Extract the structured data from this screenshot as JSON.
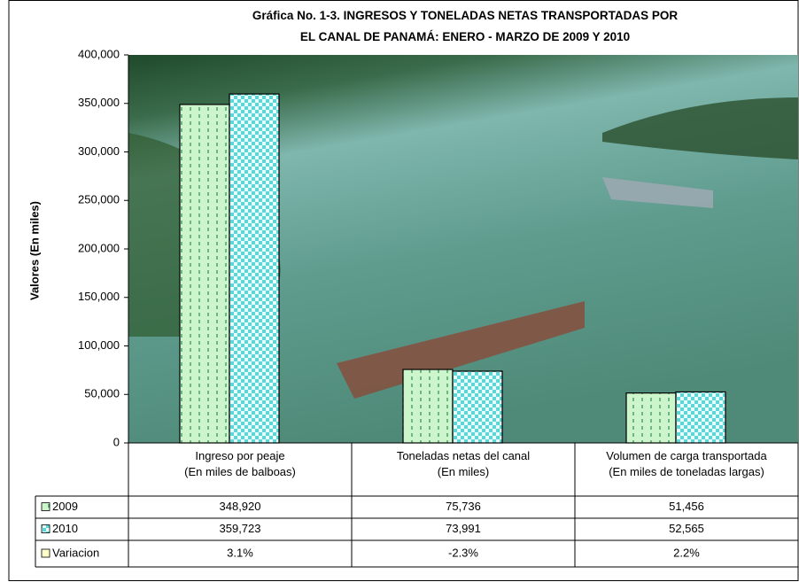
{
  "chart_data": {
    "type": "bar",
    "title": "Gráfica No. 1-3.  INGRESOS Y TONELADAS NETAS TRANSPORTADAS POR\nEL CANAL DE PANAMÁ:  ENERO - MARZO DE 2009 Y 2010",
    "y_label": "Valores (En miles)",
    "categories": [
      "Ingreso por peaje\n(En miles de balboas)",
      "Toneladas netas del canal\n(En miles)",
      "Volumen de carga transportada\n(En miles de toneladas largas)"
    ],
    "series": [
      {
        "name": "2009",
        "color": "#ccf5cc",
        "pattern_color": "#2e8b57",
        "values": [
          348920,
          75736,
          51456
        ],
        "value_labels": [
          "348,920",
          "75,736",
          "51,456"
        ]
      },
      {
        "name": "2010",
        "color": "#5fd6d6",
        "pattern_color": "#e6ffff",
        "values": [
          359723,
          73991,
          52565
        ],
        "value_labels": [
          "359,723",
          "73,991",
          "52,565"
        ]
      }
    ],
    "variation": {
      "name": "Variacion",
      "color": "#ffffcc",
      "values": [
        3.1,
        -2.3,
        2.2
      ],
      "value_labels": [
        "3.1%",
        "-2.3%",
        "2.2%"
      ]
    },
    "ylim": [
      0,
      400000
    ],
    "yticks": [
      0,
      {
        "value": 50000,
        "label": "50,000"
      },
      {
        "value": 100000,
        "label": "100,000"
      },
      {
        "value": 150000,
        "label": "150,000"
      },
      {
        "value": 200000,
        "label": "200,000"
      },
      {
        "value": 250000,
        "label": "250,000"
      },
      {
        "value": 300000,
        "label": "300,000"
      },
      {
        "value": 350000,
        "label": "350,000"
      },
      {
        "value": 400000,
        "label": "400,000"
      }
    ]
  }
}
